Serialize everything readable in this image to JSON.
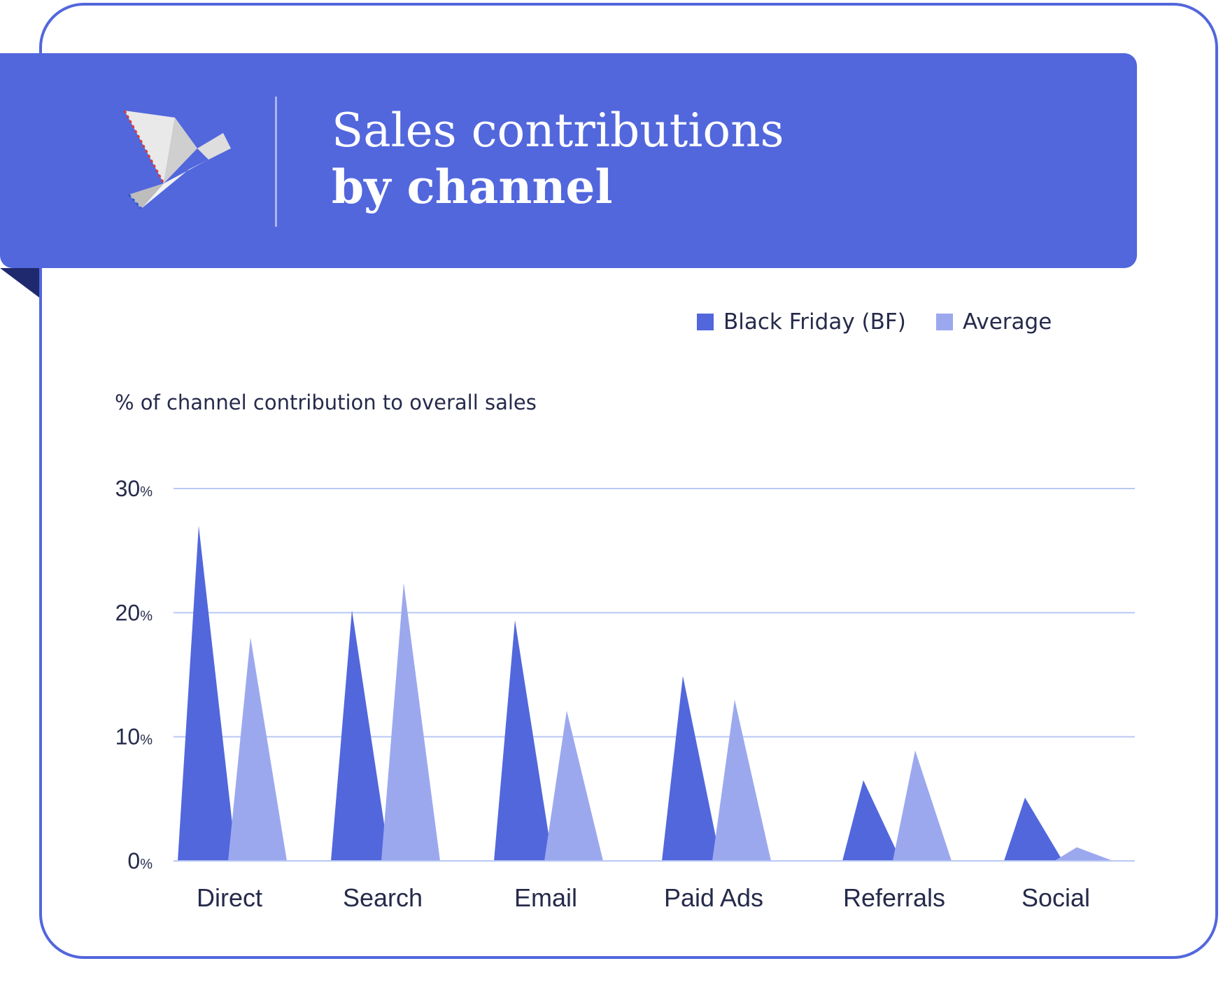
{
  "header": {
    "title_line1": "Sales contributions",
    "title_line2": "by channel",
    "logo_icon": "origami-bird-icon"
  },
  "colors": {
    "brand": "#5267dc",
    "black_friday": "#5267dc",
    "average": "#9ca8ee",
    "grid": "#b9c8f4"
  },
  "chart_data": {
    "type": "bar",
    "mark_shape": "triangle",
    "ylabel": "% of channel contribution to overall sales",
    "ylim": [
      0,
      30
    ],
    "yticks": [
      {
        "value": 0,
        "num": "0",
        "unit": "%"
      },
      {
        "value": 10,
        "num": "10",
        "unit": "%"
      },
      {
        "value": 20,
        "num": "20",
        "unit": "%"
      },
      {
        "value": 30,
        "num": "30",
        "unit": "%"
      }
    ],
    "grid": true,
    "legend_position": "top-right",
    "categories": [
      "Direct",
      "Search",
      "Email",
      "Paid Ads",
      "Referrals",
      "Social"
    ],
    "series": [
      {
        "name": "Black Friday (BF)",
        "color": "#5267dc",
        "values": [
          27,
          20.2,
          19.4,
          14.9,
          6.5,
          5.1
        ]
      },
      {
        "name": "Average",
        "color": "#9ca8ee",
        "values": [
          18,
          22.4,
          12.1,
          13,
          8.9,
          1.1
        ]
      }
    ]
  }
}
